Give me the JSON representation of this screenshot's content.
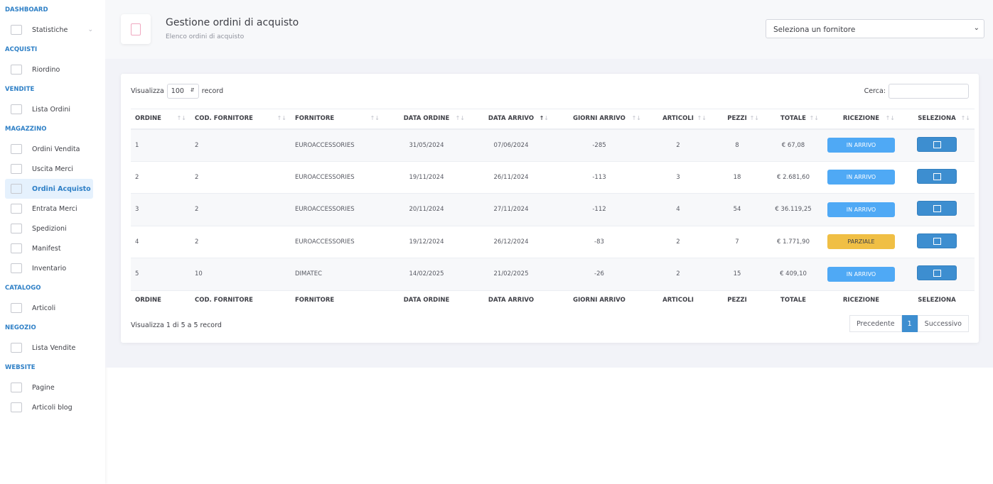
{
  "sidebar": {
    "sections": [
      {
        "title": "DASHBOARD",
        "items": [
          {
            "label": "Statistiche",
            "icon": "rocket-icon",
            "chevron": true
          }
        ]
      },
      {
        "title": "ACQUISTI",
        "items": [
          {
            "label": "Riordino",
            "icon": "globe-icon"
          }
        ]
      },
      {
        "title": "VENDITE",
        "items": [
          {
            "label": "Lista Ordini",
            "icon": "share-icon"
          }
        ]
      },
      {
        "title": "MAGAZZINO",
        "items": [
          {
            "label": "Ordini Vendita",
            "icon": "sitemap-icon"
          },
          {
            "label": "Uscita Merci",
            "icon": "cloud-download-icon"
          },
          {
            "label": "Ordini Acquisto",
            "icon": "clipboard-icon",
            "active": true
          },
          {
            "label": "Entrata Merci",
            "icon": "cloud-upload-icon"
          },
          {
            "label": "Spedizioni",
            "icon": "signpost-icon"
          },
          {
            "label": "Manifest",
            "icon": "list-icon"
          },
          {
            "label": "Inventario",
            "icon": "archive-icon"
          }
        ]
      },
      {
        "title": "CATALOGO",
        "items": [
          {
            "label": "Articoli",
            "icon": "cart-icon"
          }
        ]
      },
      {
        "title": "NEGOZIO",
        "items": [
          {
            "label": "Lista Vendite",
            "icon": "bank-icon"
          }
        ]
      },
      {
        "title": "WEBSITE",
        "items": [
          {
            "label": "Pagine",
            "icon": "page-icon"
          },
          {
            "label": "Articoli blog",
            "icon": "copy-icon"
          }
        ]
      }
    ]
  },
  "header": {
    "title": "Gestione ordini di acquisto",
    "subtitle": "Elenco ordini di acquisto",
    "supplier_placeholder": "Seleziona un fornitore"
  },
  "table_controls": {
    "show_label": "Visualizza",
    "page_length": "100",
    "records_label": "record",
    "search_label": "Cerca:",
    "search_value": ""
  },
  "columns": [
    "ORDINE",
    "COD. FORNITORE",
    "FORNITORE",
    "DATA ORDINE",
    "DATA ARRIVO",
    "GIORNI ARRIVO",
    "ARTICOLI",
    "PEZZI",
    "TOTALE",
    "RICEZIONE",
    "SELEZIONA"
  ],
  "sorted_column": "DATA ARRIVO",
  "rows": [
    {
      "ordine": "1",
      "cod": "2",
      "fornitore": "EUROACCESSORIES",
      "data_ordine": "31/05/2024",
      "data_arrivo": "07/06/2024",
      "giorni": "-285",
      "articoli": "2",
      "pezzi": "8",
      "totale": "€ 67,08",
      "ricezione": "IN ARRIVO"
    },
    {
      "ordine": "2",
      "cod": "2",
      "fornitore": "EUROACCESSORIES",
      "data_ordine": "19/11/2024",
      "data_arrivo": "26/11/2024",
      "giorni": "-113",
      "articoli": "3",
      "pezzi": "18",
      "totale": "€ 2.681,60",
      "ricezione": "IN ARRIVO"
    },
    {
      "ordine": "3",
      "cod": "2",
      "fornitore": "EUROACCESSORIES",
      "data_ordine": "20/11/2024",
      "data_arrivo": "27/11/2024",
      "giorni": "-112",
      "articoli": "4",
      "pezzi": "54",
      "totale": "€ 36.119,25",
      "ricezione": "IN ARRIVO"
    },
    {
      "ordine": "4",
      "cod": "2",
      "fornitore": "EUROACCESSORIES",
      "data_ordine": "19/12/2024",
      "data_arrivo": "26/12/2024",
      "giorni": "-83",
      "articoli": "2",
      "pezzi": "7",
      "totale": "€ 1.771,90",
      "ricezione": "PARZIALE"
    },
    {
      "ordine": "5",
      "cod": "10",
      "fornitore": "DIMATEC",
      "data_ordine": "14/02/2025",
      "data_arrivo": "21/02/2025",
      "giorni": "-26",
      "articoli": "2",
      "pezzi": "15",
      "totale": "€ 409,10",
      "ricezione": "IN ARRIVO"
    }
  ],
  "status_colors": {
    "IN ARRIVO": "#4fa9f5",
    "PARZIALE": "#f0bf45"
  },
  "footer": {
    "info": "Visualizza 1 di 5 a 5 record",
    "prev": "Precedente",
    "page": "1",
    "next": "Successivo"
  }
}
